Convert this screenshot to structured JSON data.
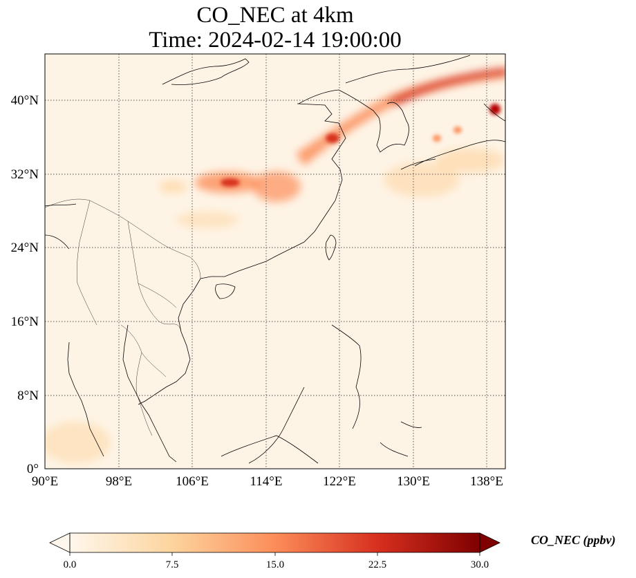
{
  "title": {
    "line1": "CO_NEC at 4km",
    "line2": "Time: 2024-02-14 19:00:00"
  },
  "map": {
    "projection": "PlateCarree",
    "lon_range": [
      90,
      140
    ],
    "lat_range": [
      0,
      45
    ],
    "lon_ticks": [
      "90°E",
      "98°E",
      "106°E",
      "114°E",
      "122°E",
      "130°E",
      "138°E"
    ],
    "lat_ticks": [
      "0°",
      "8°N",
      "16°N",
      "24°N",
      "32°N",
      "40°N"
    ],
    "gridlines": "dotted",
    "coastlines": true,
    "borders": true,
    "field": "CO_NEC",
    "colormap": "OrRd",
    "colors": [
      "#fff7ec",
      "#fdd49e",
      "#fc8d59",
      "#d7301f",
      "#7f0000"
    ],
    "plumes": [
      {
        "name": "north-china-korea-japan-band",
        "lon_start": 117,
        "lat_start": 33,
        "lon_end": 140,
        "lat_end": 43,
        "level": 22
      },
      {
        "name": "sichuan-basin",
        "lon": 110,
        "lat": 31,
        "level": 20
      },
      {
        "name": "central-china",
        "lon": 115,
        "lat": 30,
        "level": 14
      },
      {
        "name": "hokkaido",
        "lon": 139,
        "lat": 39,
        "level": 28
      },
      {
        "name": "south-japan",
        "lon": 134,
        "lat": 32,
        "level": 8
      }
    ]
  },
  "colorbar": {
    "label": "CO_NEC (ppbv)",
    "min": 0.0,
    "max": 30.0,
    "ticks": [
      "0.0",
      "7.5",
      "15.0",
      "22.5",
      "30.0"
    ],
    "extend": "both"
  }
}
